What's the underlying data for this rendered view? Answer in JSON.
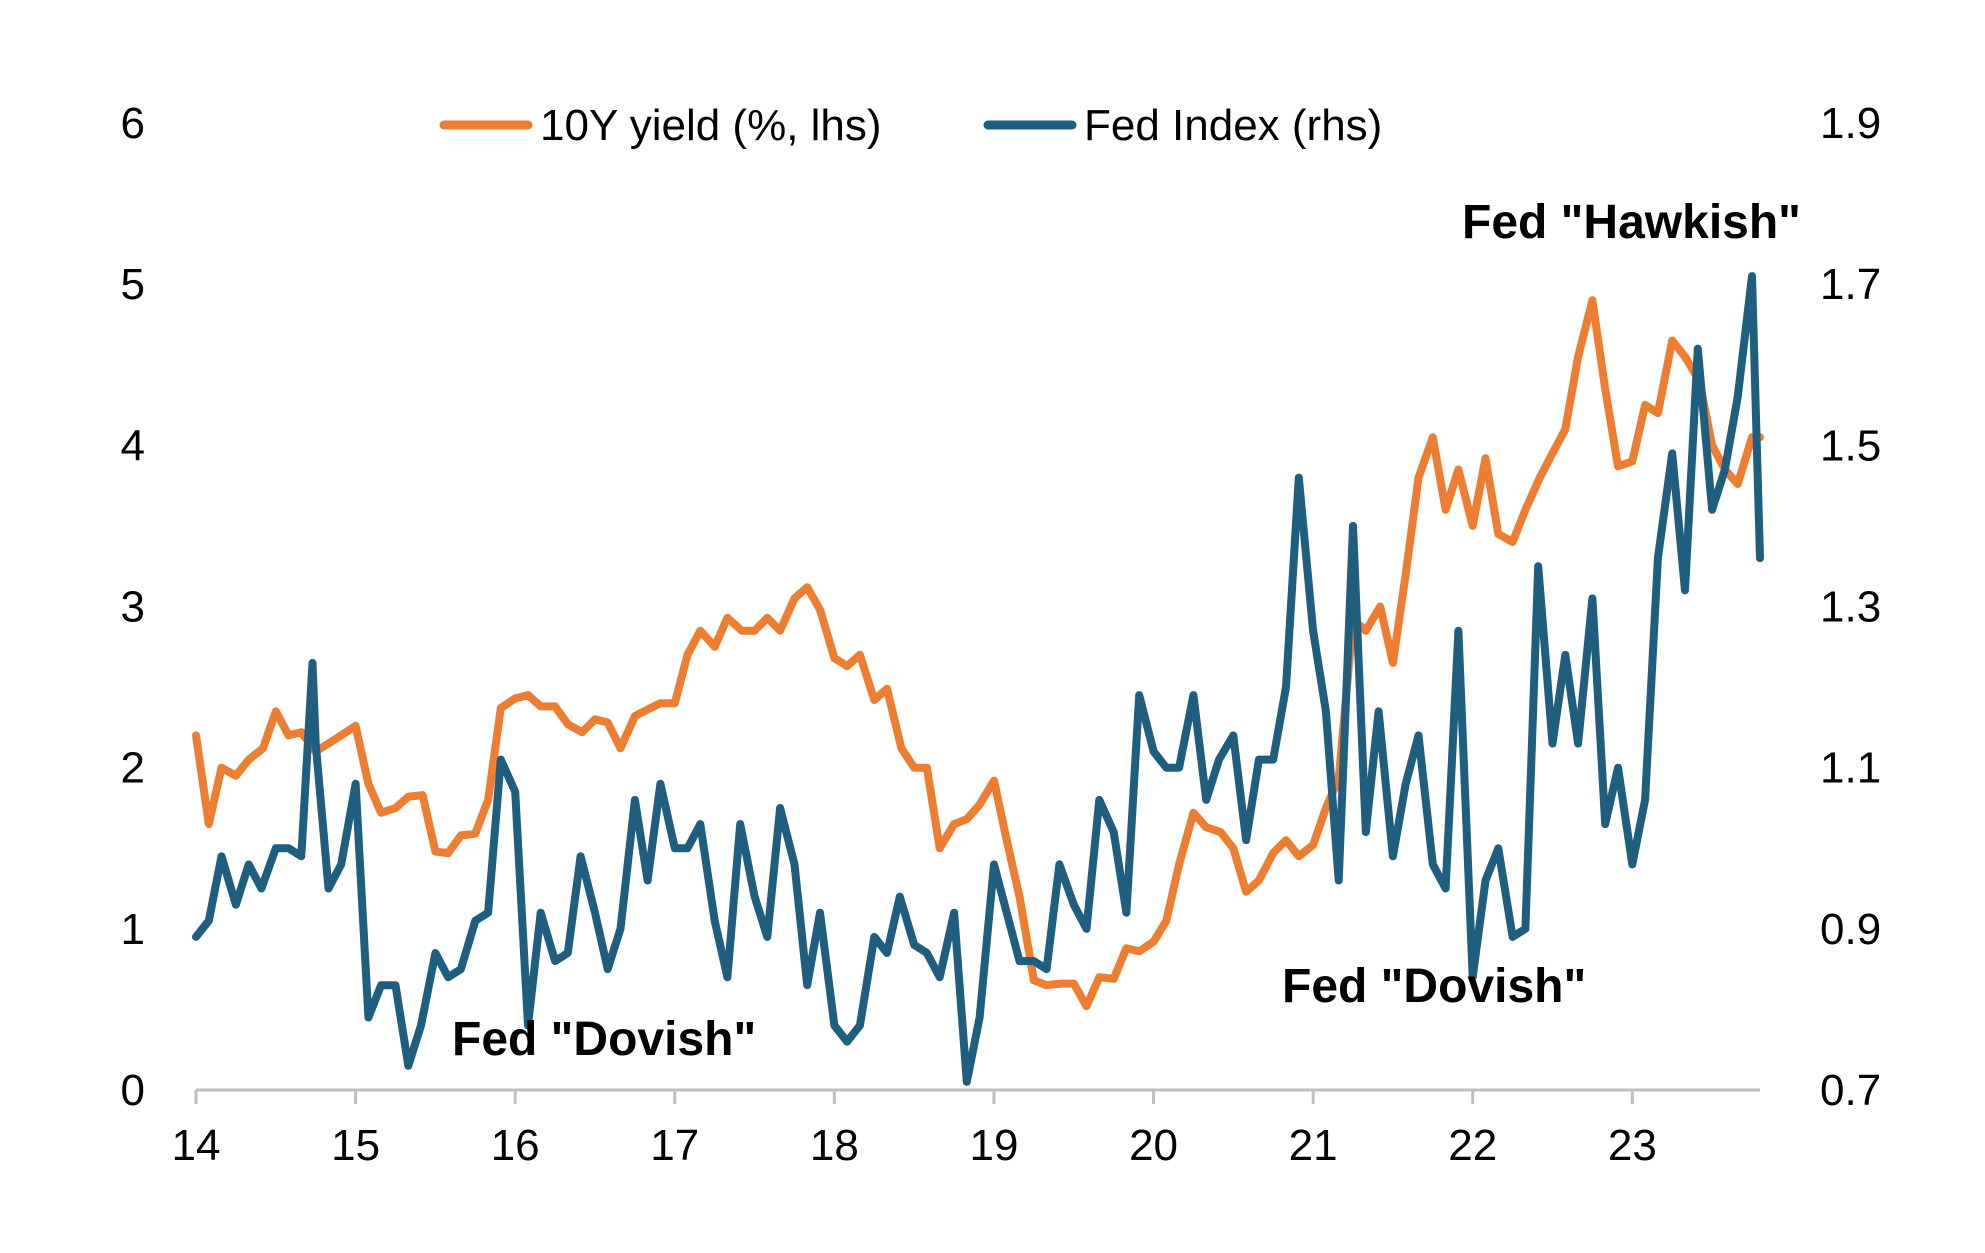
{
  "chart_data": {
    "type": "line",
    "title": "",
    "x_tick_labels": [
      "14",
      "15",
      "16",
      "17",
      "18",
      "19",
      "20",
      "21",
      "22",
      "23"
    ],
    "xlim": [
      2014.0,
      2023.8
    ],
    "y_left": {
      "lim": [
        0,
        6
      ],
      "ticks": [
        "0",
        "1",
        "2",
        "3",
        "4",
        "5",
        "6"
      ]
    },
    "y_right": {
      "lim": [
        0.7,
        1.9
      ],
      "ticks": [
        "0.7",
        "0.9",
        "1.1",
        "1.3",
        "1.5",
        "1.7",
        "1.9"
      ]
    },
    "legend": {
      "position": "top-center"
    },
    "colors": {
      "yield": "#ed7d31",
      "fed": "#1f5e7e",
      "axis": "#bfbfbf"
    },
    "series": [
      {
        "name": "10Y yield (%, lhs)",
        "axis": "left",
        "x": [
          2014.0,
          2014.08,
          2014.16,
          2014.25,
          2014.33,
          2014.42,
          2014.5,
          2014.58,
          2014.66,
          2014.75,
          2014.83,
          2014.91,
          2015.0,
          2015.08,
          2015.16,
          2015.25,
          2015.33,
          2015.42,
          2015.5,
          2015.58,
          2015.66,
          2015.75,
          2015.83,
          2015.91,
          2016.0,
          2016.08,
          2016.16,
          2016.25,
          2016.33,
          2016.42,
          2016.5,
          2016.58,
          2016.66,
          2016.75,
          2016.83,
          2016.91,
          2017.0,
          2017.08,
          2017.16,
          2017.25,
          2017.33,
          2017.42,
          2017.5,
          2017.58,
          2017.66,
          2017.75,
          2017.83,
          2017.91,
          2018.0,
          2018.08,
          2018.16,
          2018.25,
          2018.33,
          2018.42,
          2018.5,
          2018.58,
          2018.66,
          2018.75,
          2018.83,
          2018.91,
          2019.0,
          2019.08,
          2019.16,
          2019.25,
          2019.33,
          2019.42,
          2019.5,
          2019.58,
          2019.66,
          2019.75,
          2019.83,
          2019.91,
          2020.0,
          2020.08,
          2020.16,
          2020.25,
          2020.33,
          2020.42,
          2020.5,
          2020.58,
          2020.66,
          2020.75,
          2020.83,
          2020.91,
          2021.0,
          2021.08,
          2021.16,
          2021.25,
          2021.33,
          2021.42,
          2021.5,
          2021.58,
          2021.66,
          2021.75,
          2021.83,
          2021.91,
          2022.0,
          2022.08,
          2022.16,
          2022.25,
          2022.33,
          2022.42,
          2022.5,
          2022.58,
          2022.66,
          2022.75,
          2022.83,
          2022.91,
          2023.0,
          2023.08,
          2023.16,
          2023.25,
          2023.33,
          2023.42,
          2023.5,
          2023.58,
          2023.66,
          2023.75,
          2023.8
        ],
        "values": [
          2.2,
          1.65,
          2.0,
          1.95,
          2.05,
          2.12,
          2.35,
          2.2,
          2.22,
          2.1,
          2.15,
          2.2,
          2.26,
          1.9,
          1.72,
          1.75,
          1.82,
          1.83,
          1.48,
          1.47,
          1.58,
          1.59,
          1.8,
          2.37,
          2.43,
          2.45,
          2.38,
          2.38,
          2.27,
          2.22,
          2.3,
          2.28,
          2.12,
          2.32,
          2.36,
          2.4,
          2.4,
          2.7,
          2.85,
          2.75,
          2.93,
          2.85,
          2.85,
          2.93,
          2.85,
          3.05,
          3.12,
          2.98,
          2.68,
          2.63,
          2.7,
          2.42,
          2.49,
          2.12,
          2.0,
          2.0,
          1.5,
          1.65,
          1.68,
          1.77,
          1.92,
          1.55,
          1.2,
          0.68,
          0.65,
          0.66,
          0.66,
          0.52,
          0.7,
          0.69,
          0.88,
          0.86,
          0.92,
          1.05,
          1.4,
          1.72,
          1.63,
          1.6,
          1.5,
          1.23,
          1.3,
          1.47,
          1.55,
          1.45,
          1.52,
          1.75,
          1.93,
          2.92,
          2.85,
          3.0,
          2.65,
          3.2,
          3.8,
          4.05,
          3.6,
          3.85,
          3.5,
          3.92,
          3.45,
          3.4,
          3.6,
          3.8,
          3.95,
          4.1,
          4.55,
          4.9,
          4.35,
          3.87,
          3.9,
          4.25,
          4.2,
          4.65,
          4.55,
          4.4,
          4.0,
          3.85,
          3.76,
          4.05,
          4.05
        ]
      },
      {
        "name": "Fed Index (rhs)",
        "axis": "right",
        "x": [
          2014.0,
          2014.08,
          2014.16,
          2014.25,
          2014.33,
          2014.41,
          2014.5,
          2014.58,
          2014.66,
          2014.73,
          2014.75,
          2014.83,
          2014.91,
          2015.0,
          2015.08,
          2015.16,
          2015.25,
          2015.33,
          2015.41,
          2015.5,
          2015.58,
          2015.66,
          2015.75,
          2015.83,
          2015.91,
          2016.0,
          2016.08,
          2016.16,
          2016.25,
          2016.33,
          2016.41,
          2016.5,
          2016.58,
          2016.66,
          2016.75,
          2016.83,
          2016.91,
          2017.0,
          2017.08,
          2017.16,
          2017.25,
          2017.33,
          2017.41,
          2017.5,
          2017.58,
          2017.66,
          2017.75,
          2017.83,
          2017.91,
          2018.0,
          2018.08,
          2018.16,
          2018.25,
          2018.33,
          2018.41,
          2018.5,
          2018.58,
          2018.66,
          2018.75,
          2018.83,
          2018.91,
          2019.0,
          2019.08,
          2019.16,
          2019.25,
          2019.33,
          2019.41,
          2019.5,
          2019.58,
          2019.66,
          2019.75,
          2019.83,
          2019.91,
          2020.0,
          2020.08,
          2020.16,
          2020.25,
          2020.33,
          2020.41,
          2020.5,
          2020.58,
          2020.66,
          2020.75,
          2020.83,
          2020.91,
          2021.0,
          2021.08,
          2021.16,
          2021.25,
          2021.33,
          2021.41,
          2021.5,
          2021.58,
          2021.66,
          2021.75,
          2021.83,
          2021.91,
          2022.0,
          2022.08,
          2022.16,
          2022.25,
          2022.33,
          2022.41,
          2022.5,
          2022.58,
          2022.66,
          2022.75,
          2022.83,
          2022.91,
          2023.0,
          2023.08,
          2023.16,
          2023.25,
          2023.33,
          2023.41,
          2023.5,
          2023.58,
          2023.66,
          2023.75,
          2023.8
        ],
        "values": [
          0.89,
          0.91,
          0.99,
          0.93,
          0.98,
          0.95,
          1.0,
          1.0,
          0.99,
          1.23,
          1.13,
          0.95,
          0.98,
          1.08,
          0.79,
          0.83,
          0.83,
          0.73,
          0.78,
          0.87,
          0.84,
          0.85,
          0.91,
          0.92,
          1.11,
          1.07,
          0.78,
          0.92,
          0.86,
          0.87,
          0.99,
          0.92,
          0.85,
          0.9,
          1.06,
          0.96,
          1.08,
          1.0,
          1.0,
          1.03,
          0.91,
          0.84,
          1.03,
          0.94,
          0.89,
          1.05,
          0.98,
          0.83,
          0.92,
          0.78,
          0.76,
          0.78,
          0.89,
          0.87,
          0.94,
          0.88,
          0.87,
          0.84,
          0.92,
          0.71,
          0.79,
          0.98,
          0.92,
          0.86,
          0.86,
          0.85,
          0.98,
          0.93,
          0.9,
          1.06,
          1.02,
          0.92,
          1.19,
          1.12,
          1.1,
          1.1,
          1.19,
          1.06,
          1.11,
          1.14,
          1.01,
          1.11,
          1.11,
          1.2,
          1.46,
          1.27,
          1.17,
          0.96,
          1.4,
          1.02,
          1.17,
          0.99,
          1.08,
          1.14,
          0.98,
          0.95,
          1.27,
          0.84,
          0.96,
          1.0,
          0.89,
          0.9,
          1.35,
          1.13,
          1.24,
          1.13,
          1.31,
          1.03,
          1.1,
          0.98,
          1.06,
          1.36,
          1.49,
          1.32,
          1.62,
          1.42,
          1.47,
          1.56,
          1.71,
          1.36
        ]
      }
    ],
    "annotations": [
      "Fed \"Hawkish\"",
      "Fed \"Dovish\"",
      "Fed \"Dovish\""
    ]
  }
}
